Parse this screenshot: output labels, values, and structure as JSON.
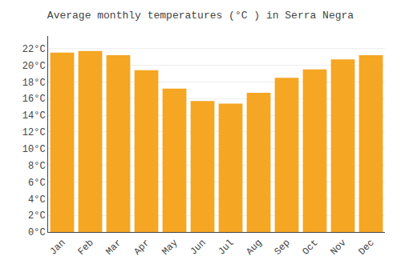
{
  "chart_data": {
    "type": "bar",
    "title": "Average monthly temperatures (°C ) in Serra Negra",
    "categories": [
      "Jan",
      "Feb",
      "Mar",
      "Apr",
      "May",
      "Jun",
      "Jul",
      "Aug",
      "Sep",
      "Oct",
      "Nov",
      "Dec"
    ],
    "values": [
      21.5,
      21.7,
      21.2,
      19.4,
      17.2,
      15.7,
      15.4,
      16.7,
      18.5,
      19.5,
      20.7,
      21.2
    ],
    "color": "#F5A623",
    "ylim": [
      0,
      23.5
    ],
    "yticks": [
      {
        "value": 0,
        "label": "0°C"
      },
      {
        "value": 2,
        "label": "2°C"
      },
      {
        "value": 4,
        "label": "4°C"
      },
      {
        "value": 6,
        "label": "6°C"
      },
      {
        "value": 8,
        "label": "8°C"
      },
      {
        "value": 10,
        "label": "10°C"
      },
      {
        "value": 12,
        "label": "12°C"
      },
      {
        "value": 14,
        "label": "14°C"
      },
      {
        "value": 16,
        "label": "16°C"
      },
      {
        "value": 18,
        "label": "18°C"
      },
      {
        "value": 20,
        "label": "20°C"
      },
      {
        "value": 22,
        "label": "22°C"
      }
    ],
    "grid": true
  }
}
